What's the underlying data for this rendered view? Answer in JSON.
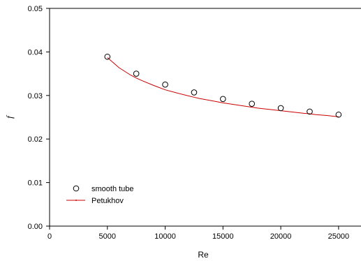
{
  "chart_data": {
    "type": "scatter",
    "xlabel": "Re",
    "ylabel": "f",
    "xlim": [
      0,
      27000
    ],
    "ylim": [
      0,
      0.05
    ],
    "x_ticks": [
      0,
      5000,
      10000,
      15000,
      20000,
      25000
    ],
    "y_ticks": [
      0.0,
      0.01,
      0.02,
      0.03,
      0.04,
      0.05
    ],
    "x_tick_labels": [
      "0",
      "5000",
      "10000",
      "15000",
      "20000",
      "25000"
    ],
    "y_tick_labels": [
      "0.00",
      "0.01",
      "0.02",
      "0.03",
      "0.04",
      "0.05"
    ],
    "grid": false,
    "legend_position": "bottom-left",
    "series": [
      {
        "name": "smooth tube",
        "kind": "scatter",
        "marker": "open-circle",
        "color": "#000000",
        "x": [
          5000,
          7500,
          10000,
          12500,
          15000,
          17500,
          20000,
          22500,
          25000
        ],
        "y": [
          0.0389,
          0.035,
          0.0325,
          0.0307,
          0.0292,
          0.0281,
          0.0271,
          0.0263,
          0.0256
        ]
      },
      {
        "name": "Petukhov",
        "kind": "line",
        "color": "#cc0000",
        "x": [
          5000,
          6000,
          7000,
          7500,
          8000,
          9000,
          10000,
          11000,
          12000,
          12500,
          13000,
          14000,
          15000,
          16000,
          17000,
          17500,
          18000,
          19000,
          20000,
          21000,
          22000,
          22500,
          23000,
          24000,
          25000
        ],
        "y": [
          0.0387,
          0.0364,
          0.0347,
          0.034,
          0.0334,
          0.0323,
          0.0313,
          0.0306,
          0.0299,
          0.0296,
          0.0293,
          0.0288,
          0.0283,
          0.0279,
          0.0275,
          0.0273,
          0.0271,
          0.0268,
          0.0265,
          0.0262,
          0.0259,
          0.0258,
          0.0256,
          0.0254,
          0.0251
        ]
      }
    ]
  }
}
